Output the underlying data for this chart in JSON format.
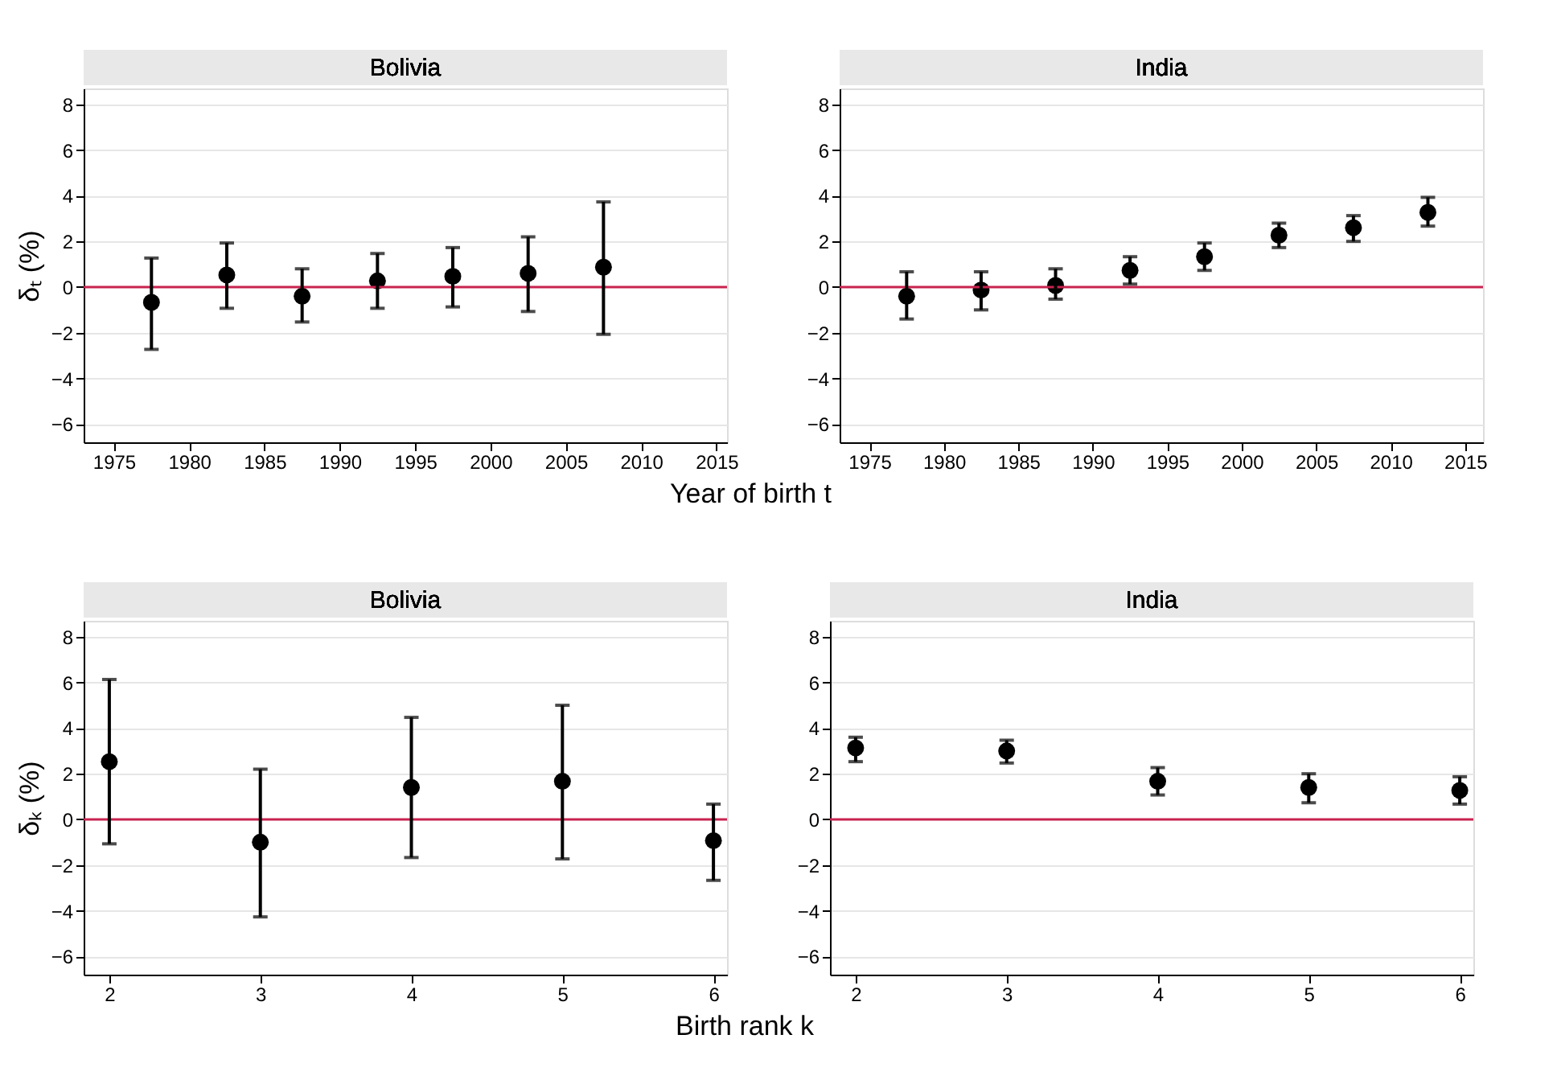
{
  "chart_data": [
    {
      "type": "scatter",
      "title": "Bolivia",
      "xlabel": "Year of birth t",
      "ylabel": "δₜ (%)",
      "marker": "circle",
      "color": "#000000",
      "grid": "y",
      "xlim": [
        1973,
        2015.7
      ],
      "xticks": [
        1975,
        1980,
        1985,
        1990,
        1995,
        2000,
        2005,
        2010,
        2015
      ],
      "ylim": [
        -6.8,
        8.7
      ],
      "yticks": [
        -6,
        -4,
        -2,
        0,
        2,
        4,
        6,
        8
      ],
      "x": [
        1977.5,
        1982.5,
        1987.5,
        1992.5,
        1997.5,
        2002.5,
        2007.5
      ],
      "values": [
        -0.67,
        0.53,
        -0.4,
        0.27,
        0.47,
        0.6,
        0.87
      ],
      "errors": [
        [
          -2.73,
          1.27
        ],
        [
          -0.93,
          1.93
        ],
        [
          -1.53,
          0.8
        ],
        [
          -0.93,
          1.47
        ],
        [
          -0.87,
          1.73
        ],
        [
          -1.07,
          2.2
        ],
        [
          -2.07,
          3.73
        ]
      ],
      "ref_lines": [
        {
          "axis": "y",
          "value": 0,
          "color": "#c8234f"
        }
      ]
    },
    {
      "type": "scatter",
      "title": "India",
      "marker": "circle",
      "color": "#000000",
      "grid": "y",
      "xlim": [
        1973,
        2016.2
      ],
      "xticks": [
        1975,
        1980,
        1985,
        1990,
        1995,
        2000,
        2005,
        2010,
        2015
      ],
      "ylim": [
        -6.8,
        8.7
      ],
      "yticks": [
        -6,
        -4,
        -2,
        0,
        2,
        4,
        6,
        8
      ],
      "x": [
        1977.5,
        1982.5,
        1987.5,
        1992.5,
        1997.5,
        2002.5,
        2007.5,
        2012.5
      ],
      "values": [
        -0.4,
        -0.13,
        0.07,
        0.73,
        1.33,
        2.27,
        2.6,
        3.27
      ],
      "errors": [
        [
          -1.4,
          0.67
        ],
        [
          -1.0,
          0.67
        ],
        [
          -0.53,
          0.8
        ],
        [
          0.13,
          1.33
        ],
        [
          0.73,
          1.93
        ],
        [
          1.73,
          2.8
        ],
        [
          2.0,
          3.13
        ],
        [
          2.67,
          3.93
        ]
      ],
      "ref_lines": [
        {
          "axis": "y",
          "value": 0,
          "color": "#c8234f"
        }
      ]
    },
    {
      "type": "scatter",
      "title": "Bolivia",
      "xlabel": "Birth rank k",
      "ylabel": "δₖ (%)",
      "marker": "circle",
      "color": "#000000",
      "grid": "y",
      "xlim": [
        1.83,
        6.09
      ],
      "xticks": [
        2,
        3,
        4,
        5,
        6
      ],
      "ylim": [
        -6.8,
        8.7
      ],
      "yticks": [
        -6,
        -4,
        -2,
        0,
        2,
        4,
        6,
        8
      ],
      "x": [
        2,
        3,
        4,
        5,
        6
      ],
      "values": [
        2.53,
        -1.0,
        1.4,
        1.67,
        -0.93
      ],
      "errors": [
        [
          -1.07,
          6.13
        ],
        [
          -4.27,
          2.2
        ],
        [
          -1.67,
          4.47
        ],
        [
          -1.73,
          5.0
        ],
        [
          -2.67,
          0.67
        ]
      ],
      "ref_lines": [
        {
          "axis": "y",
          "value": 0,
          "color": "#c8234f"
        }
      ]
    },
    {
      "type": "scatter",
      "title": "India",
      "marker": "circle",
      "color": "#000000",
      "grid": "y",
      "xlim": [
        1.83,
        6.09
      ],
      "xticks": [
        2,
        3,
        4,
        5,
        6
      ],
      "ylim": [
        -6.8,
        8.7
      ],
      "yticks": [
        -6,
        -4,
        -2,
        0,
        2,
        4,
        6,
        8
      ],
      "x": [
        2,
        3,
        4,
        5,
        6
      ],
      "values": [
        3.13,
        3.0,
        1.67,
        1.4,
        1.27
      ],
      "errors": [
        [
          2.53,
          3.6
        ],
        [
          2.47,
          3.47
        ],
        [
          1.07,
          2.27
        ],
        [
          0.73,
          2.0
        ],
        [
          0.67,
          1.87
        ]
      ],
      "ref_lines": [
        {
          "axis": "y",
          "value": 0,
          "color": "#c8234f"
        }
      ]
    }
  ]
}
